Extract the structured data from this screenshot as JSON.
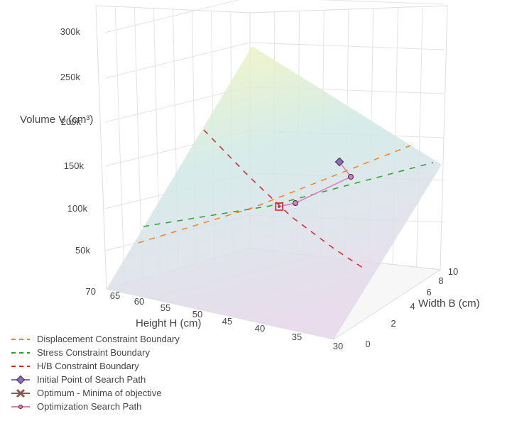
{
  "chart_data": {
    "type": "surface3d",
    "axes": {
      "x": {
        "label": "Width B (cm)",
        "ticks": [
          "0",
          "2",
          "4",
          "6",
          "8",
          "10"
        ]
      },
      "y": {
        "label": "Height H (cm)",
        "ticks": [
          "30",
          "35",
          "40",
          "45",
          "50",
          "55",
          "60",
          "65",
          "70"
        ]
      },
      "z": {
        "label": "Volume V (cm³)",
        "ticks": [
          "50k",
          "100k",
          "150k",
          "200k",
          "250k",
          "300k"
        ]
      }
    },
    "surface": {
      "description_values": "volume plane",
      "colors": [
        "#f5f5b8",
        "#cfe9e6",
        "#e6d8ea"
      ]
    },
    "series": [
      {
        "name": "Displacement Constraint Boundary",
        "style": "dash",
        "color": "#ff7f0e"
      },
      {
        "name": "Stress Constraint Boundary",
        "style": "dash",
        "color": "#2ca02c"
      },
      {
        "name": "H/B Constraint Boundary",
        "style": "dash",
        "color": "#d62728"
      },
      {
        "name": "Initial Point of Search Path",
        "style": "diamond-marker",
        "color": "#9467bd"
      },
      {
        "name": "Optimum - Minima of objective",
        "style": "x-marker",
        "color": "#8c564b"
      },
      {
        "name": "Optimization Search Path",
        "style": "line-marker",
        "color": "#e377c2"
      }
    ]
  }
}
